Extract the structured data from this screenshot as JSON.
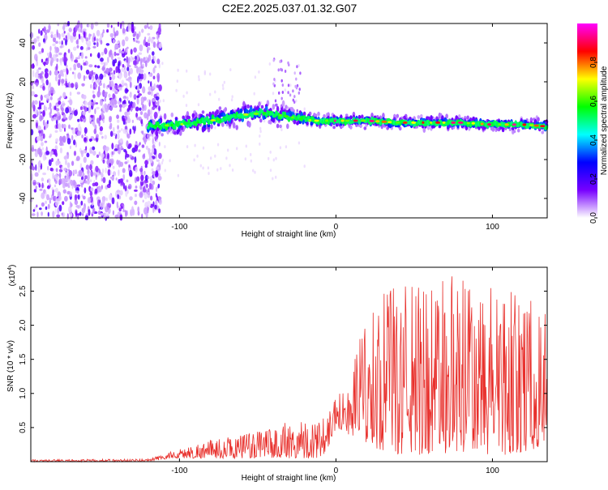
{
  "chart_data": [
    {
      "type": "heatmap",
      "title": "C2E2.2025.037.01.32.G07",
      "xlabel": "Height of straight line (km)",
      "ylabel": "Frequency (Hz)",
      "xlim": [
        -195,
        135
      ],
      "ylim": [
        -50,
        50
      ],
      "x_ticks": [
        -100,
        0,
        100
      ],
      "y_ticks": [
        -40,
        -20,
        0,
        20,
        40
      ],
      "ridge": {
        "x": [
          -120,
          -100,
          -80,
          -60,
          -45,
          -30,
          -15,
          0,
          20,
          40,
          60,
          80,
          100,
          120,
          135
        ],
        "y": [
          -3,
          -2,
          0,
          3,
          4,
          2,
          0,
          0,
          0,
          -1,
          -1,
          -1,
          -2,
          -2,
          -3
        ]
      },
      "noise_region": [
        -195,
        -120
      ],
      "colorbar": {
        "label": "Normalized spectral amplitude",
        "range": [
          0,
          1
        ],
        "ticks": [
          "0.0",
          "0.2",
          "0.4",
          "0.6",
          "0.8"
        ],
        "colors": [
          "#ffffff",
          "#7700ff",
          "#0000ff",
          "#00ffff",
          "#00ff00",
          "#ffff00",
          "#ff0000",
          "#ff00ff"
        ]
      }
    },
    {
      "type": "line",
      "xlabel": "Height of straight line (km)",
      "ylabel": "SNR (10 * v/v)",
      "y_multiplier": "(x10",
      "y_multiplier_exp": "4",
      "xlim": [
        -195,
        135
      ],
      "ylim": [
        0,
        2.85
      ],
      "x_ticks": [
        -100,
        0,
        100
      ],
      "y_ticks": [
        0.5,
        1.0,
        1.5,
        2.0,
        2.5
      ],
      "color": "#e8302c",
      "envelope": {
        "x": [
          -195,
          -120,
          -105,
          -85,
          -60,
          -48,
          -40,
          -30,
          -20,
          -12,
          -8,
          -3,
          0,
          8,
          15,
          25,
          40,
          60,
          70,
          90,
          110,
          130,
          135
        ],
        "low": [
          0.0,
          0.0,
          0.05,
          0.05,
          0.05,
          0.05,
          0.05,
          0.05,
          0.05,
          0.05,
          0.1,
          0.3,
          0.5,
          0.4,
          0.3,
          0.2,
          0.1,
          0.1,
          0.1,
          0.1,
          0.1,
          0.2,
          0.3
        ],
        "high": [
          0.03,
          0.04,
          0.15,
          0.3,
          0.4,
          0.45,
          0.5,
          0.6,
          0.65,
          0.55,
          0.7,
          0.9,
          1.05,
          1.1,
          1.8,
          2.4,
          2.6,
          2.6,
          2.85,
          2.5,
          2.6,
          2.3,
          2.2
        ]
      }
    }
  ]
}
